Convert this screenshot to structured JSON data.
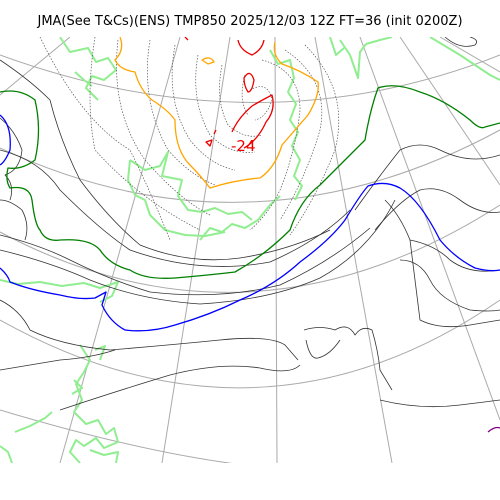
{
  "title": "JMA(See T&Cs)(ENS) TMP850 2025/12/03 12Z FT=36 (init 0200Z)",
  "map": {
    "field": "TMP850",
    "isotherm_label": "-24",
    "colors": {
      "coastline": "#90ee90",
      "graticule": "#aaaaaa",
      "isotherm_black": "#333333",
      "isotherm_dotted": "#555555",
      "isotherm_green": "#008000",
      "isotherm_blue": "#0000ff",
      "isotherm_orange": "#ffa500",
      "isotherm_red": "#ee0000",
      "isotherm_purple": "#800080"
    }
  }
}
